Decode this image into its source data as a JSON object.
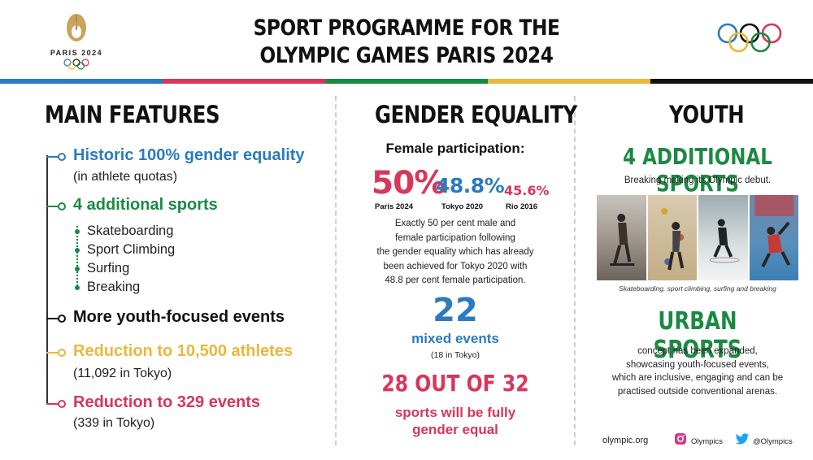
{
  "header": {
    "logo_text": "PARIS 2024",
    "title_line1": "SPORT PROGRAMME FOR THE",
    "title_line2": "OLYMPIC GAMES PARIS 2024"
  },
  "colors": {
    "blue": "#2a7bbf",
    "red": "#d8365b",
    "green": "#1a8a43",
    "yellow": "#e9b83c",
    "black": "#111111",
    "gold": "#c9a35b"
  },
  "main_features": {
    "title": "MAIN FEATURES",
    "items": [
      {
        "label": "Historic 100% gender equality",
        "sub": "(in athlete quotas)"
      },
      {
        "label": "4 additional sports",
        "sports": [
          "Skateboarding",
          "Sport Climbing",
          "Surfing",
          "Breaking"
        ]
      },
      {
        "label": "More youth-focused events"
      },
      {
        "label": "Reduction to 10,500 athletes",
        "sub": "(11,092 in Tokyo)"
      },
      {
        "label": "Reduction to 329 events",
        "sub": "(339 in Tokyo)"
      }
    ]
  },
  "gender_equality": {
    "title": "GENDER EQUALITY",
    "subtitle": "Female participation:",
    "stats": [
      {
        "value": "50%",
        "label": "Paris 2024"
      },
      {
        "value": "48.8%",
        "label": "Tokyo 2020"
      },
      {
        "value": "45.6%",
        "label": "Rio 2016"
      }
    ],
    "description": [
      "Exactly 50 per cent male and",
      "female participation following",
      "the gender equality which has already",
      "been achieved for Tokyo 2020 with",
      "48.8 per cent female participation."
    ],
    "mixed_number": "22",
    "mixed_label": "mixed events",
    "mixed_sub": "(18 in Tokyo)",
    "sports_big": "28 OUT OF 32",
    "sports_line1": "sports will be fully",
    "sports_line2": "gender equal"
  },
  "youth": {
    "title": "YOUTH",
    "additional": "4 ADDITIONAL SPORTS",
    "breaking_text": "Breaking making its Olympic debut.",
    "photo_caption": "Skateboarding, sport climbing, surfing and breaking",
    "urban": "URBAN SPORTS",
    "urban_desc": [
      "concept has been expanded,",
      "showcasing youth-focused events,",
      "which are inclusive, engaging and can be",
      "practised outside conventional arenas."
    ]
  },
  "footer": {
    "website": "olympic.org",
    "instagram": "Olympics",
    "twitter": "@Olympics"
  }
}
